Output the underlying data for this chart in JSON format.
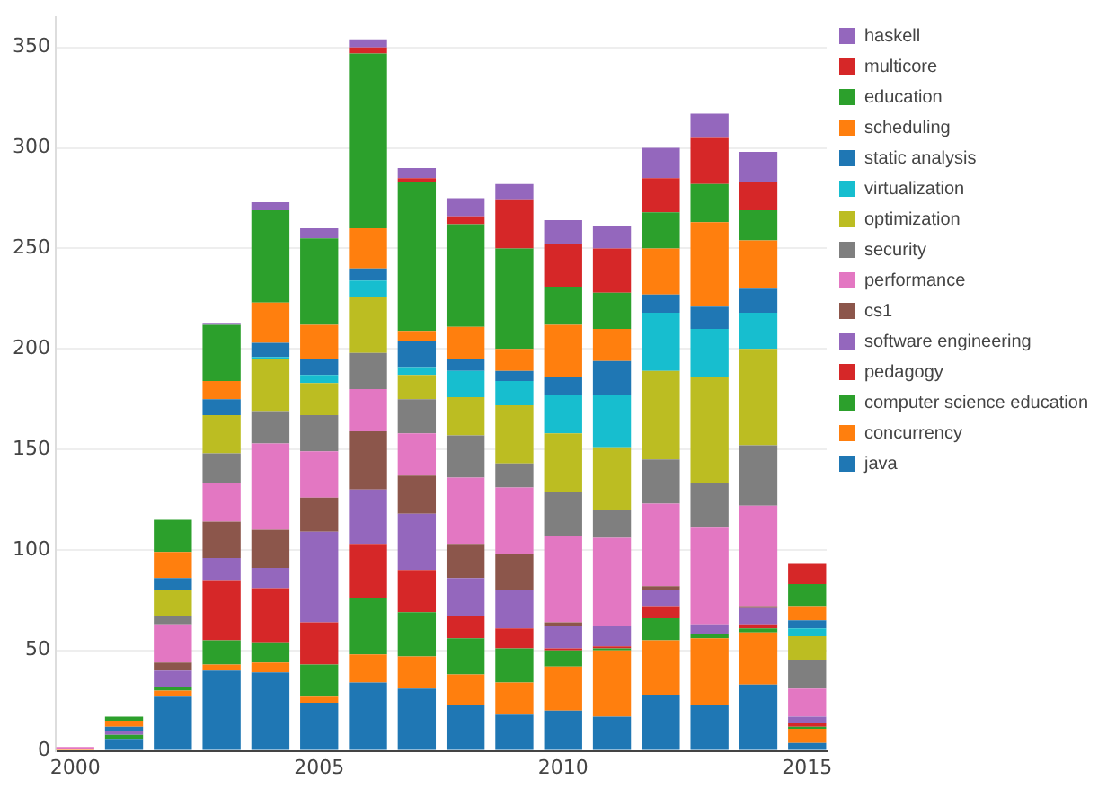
{
  "chart_data": {
    "type": "bar",
    "stacked": true,
    "x": [
      2000,
      2001,
      2002,
      2003,
      2004,
      2005,
      2006,
      2007,
      2008,
      2009,
      2010,
      2011,
      2012,
      2013,
      2014,
      2015
    ],
    "xlim": [
      1999.6,
      2015.4
    ],
    "xticks": [
      2000,
      2005,
      2010,
      2015
    ],
    "ylim": [
      0,
      365
    ],
    "yticks": [
      0,
      50,
      100,
      150,
      200,
      250,
      300,
      350
    ],
    "grid": "y",
    "legend": "right",
    "series": [
      {
        "name": "java",
        "color": "#1f77b4",
        "values": [
          0,
          6,
          27,
          40,
          39,
          24,
          34,
          31,
          23,
          18,
          20,
          17,
          28,
          23,
          33,
          4
        ]
      },
      {
        "name": "concurrency",
        "color": "#ff7f0e",
        "values": [
          1,
          0,
          3,
          3,
          5,
          3,
          14,
          16,
          15,
          16,
          22,
          33,
          27,
          33,
          26,
          7
        ]
      },
      {
        "name": "computer science education",
        "color": "#2ca02c",
        "values": [
          0,
          2,
          2,
          12,
          10,
          16,
          28,
          22,
          18,
          17,
          8,
          1,
          11,
          2,
          2,
          1
        ]
      },
      {
        "name": "pedagogy",
        "color": "#d62728",
        "values": [
          0,
          0,
          0,
          30,
          27,
          21,
          27,
          21,
          11,
          10,
          1,
          1,
          6,
          0,
          2,
          2
        ]
      },
      {
        "name": "software engineering",
        "color": "#9467bd",
        "values": [
          0,
          2,
          8,
          11,
          10,
          45,
          27,
          28,
          19,
          19,
          11,
          10,
          8,
          5,
          8,
          3
        ]
      },
      {
        "name": "cs1",
        "color": "#8c564b",
        "values": [
          0,
          0,
          4,
          18,
          19,
          17,
          29,
          19,
          17,
          18,
          2,
          0,
          2,
          0,
          1,
          0
        ]
      },
      {
        "name": "performance",
        "color": "#e377c2",
        "values": [
          1,
          0,
          19,
          19,
          43,
          23,
          21,
          21,
          33,
          33,
          43,
          44,
          41,
          48,
          50,
          14
        ]
      },
      {
        "name": "security",
        "color": "#7f7f7f",
        "values": [
          0,
          0,
          4,
          15,
          16,
          18,
          18,
          17,
          21,
          12,
          22,
          14,
          22,
          22,
          30,
          14
        ]
      },
      {
        "name": "optimization",
        "color": "#bcbd22",
        "values": [
          0,
          0,
          13,
          19,
          26,
          16,
          28,
          12,
          19,
          29,
          29,
          31,
          44,
          53,
          48,
          12
        ]
      },
      {
        "name": "virtualization",
        "color": "#17becf",
        "values": [
          0,
          0,
          0,
          0,
          1,
          4,
          8,
          4,
          13,
          12,
          19,
          26,
          29,
          24,
          18,
          4
        ]
      },
      {
        "name": "static analysis",
        "color": "#1f77b4",
        "values": [
          0,
          2,
          6,
          8,
          7,
          8,
          6,
          13,
          6,
          5,
          9,
          17,
          9,
          11,
          12,
          4
        ]
      },
      {
        "name": "scheduling",
        "color": "#ff7f0e",
        "values": [
          0,
          3,
          13,
          9,
          20,
          17,
          20,
          5,
          16,
          11,
          26,
          16,
          23,
          42,
          24,
          7
        ]
      },
      {
        "name": "education",
        "color": "#2ca02c",
        "values": [
          0,
          2,
          16,
          28,
          46,
          43,
          87,
          74,
          51,
          50,
          19,
          18,
          18,
          19,
          15,
          11
        ]
      },
      {
        "name": "multicore",
        "color": "#d62728",
        "values": [
          0,
          0,
          0,
          0,
          0,
          0,
          3,
          2,
          4,
          24,
          21,
          22,
          17,
          23,
          14,
          10
        ]
      },
      {
        "name": "haskell",
        "color": "#9467bd",
        "values": [
          0,
          0,
          0,
          1,
          4,
          5,
          4,
          5,
          9,
          8,
          12,
          11,
          15,
          12,
          15,
          0
        ]
      }
    ]
  }
}
